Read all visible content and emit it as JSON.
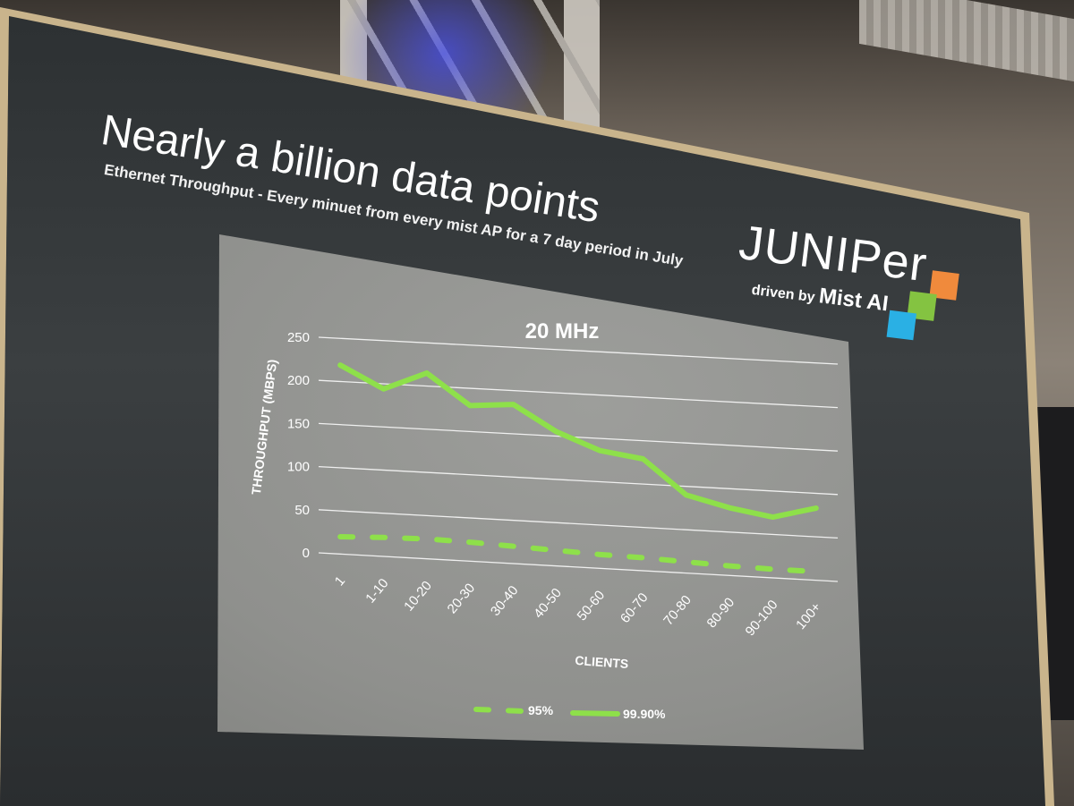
{
  "slide": {
    "title": "Nearly a billion data points",
    "subtitle": "Ethernet Throughput - Every minuet from every mist AP for a 7 day period in July"
  },
  "logo": {
    "wordmark": "JUNIPer",
    "tagline_prefix": "driven by",
    "tagline_brand": "Mist AI",
    "colors": [
      "#f08a3c",
      "#84c341",
      "#2ab0e4"
    ]
  },
  "chart_data": {
    "type": "line",
    "title": "20 MHz",
    "xlabel": "CLIENTS",
    "ylabel": "THROUGHPUT (MBPS)",
    "categories": [
      "1",
      "1-10",
      "10-20",
      "20-30",
      "30-40",
      "40-50",
      "50-60",
      "60-70",
      "70-80",
      "80-90",
      "90-100",
      "100+"
    ],
    "ylim": [
      0,
      250
    ],
    "yticks": [
      0,
      50,
      100,
      150,
      200,
      250
    ],
    "grid": true,
    "legend": "bottom",
    "series": [
      {
        "name": "95%",
        "style": "dashed",
        "color": "#8ee04a",
        "values": [
          20,
          22,
          23,
          22,
          20,
          18,
          16,
          15,
          13,
          11,
          10,
          10
        ]
      },
      {
        "name": "99.90%",
        "style": "solid",
        "color": "#8ee04a",
        "values": [
          219,
          194,
          215,
          180,
          184,
          155,
          136,
          129,
          90,
          78,
          70,
          83
        ]
      }
    ]
  }
}
